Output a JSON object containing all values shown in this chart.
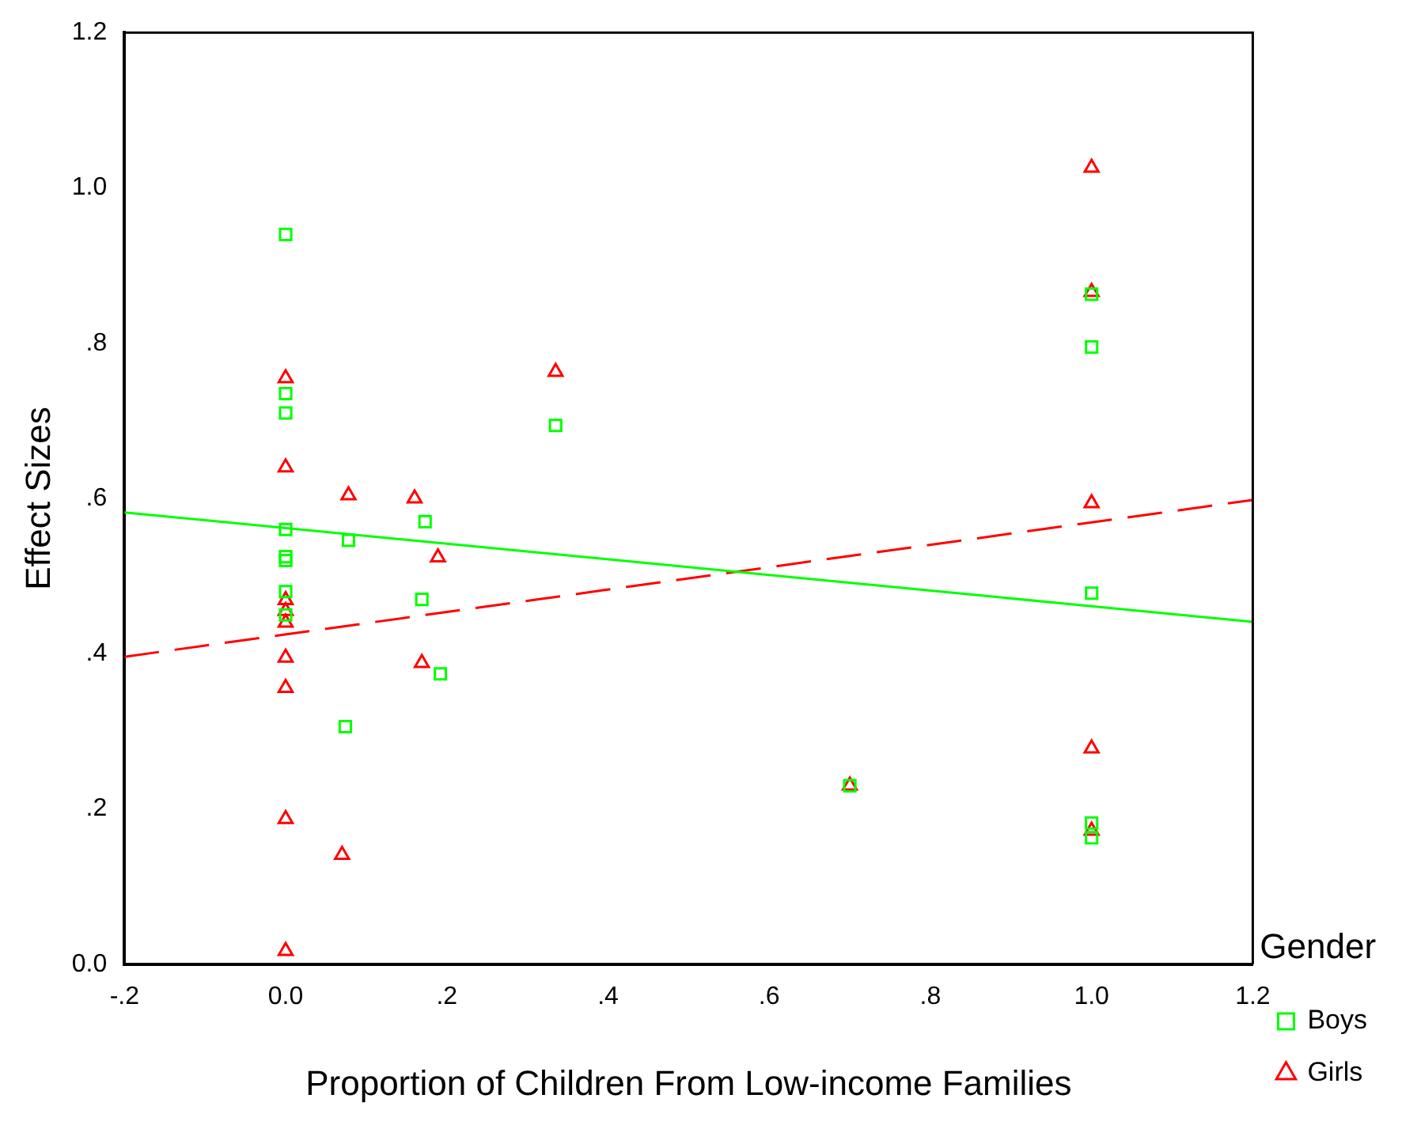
{
  "chart_data": {
    "type": "scatter",
    "xlabel": "Proportion of Children From Low-income Families",
    "ylabel": "Effect Sizes",
    "legend_title": "Gender",
    "legend": "right",
    "grid": false,
    "xlim": [
      -0.2,
      1.2
    ],
    "xticks": [
      {
        "value": -0.2,
        "label": "-.2"
      },
      {
        "value": 0,
        "label": "0.0"
      },
      {
        "value": 0.2,
        "label": ".2"
      },
      {
        "value": 0.4,
        "label": ".4"
      },
      {
        "value": 0.6,
        "label": ".6"
      },
      {
        "value": 0.8,
        "label": ".8"
      },
      {
        "value": 1,
        "label": "1.0"
      },
      {
        "value": 1.2,
        "label": "1.2"
      }
    ],
    "ylim": [
      0,
      1.2
    ],
    "yticks": [
      {
        "value": 0,
        "label": "0.0"
      },
      {
        "value": 0.2,
        "label": ".2"
      },
      {
        "value": 0.4,
        "label": ".4"
      },
      {
        "value": 0.6,
        "label": ".6"
      },
      {
        "value": 0.8,
        "label": ".8"
      },
      {
        "value": 1,
        "label": "1.0"
      },
      {
        "value": 1.2,
        "label": "1.2"
      }
    ],
    "series": [
      {
        "name": "Boys",
        "marker": "square",
        "color": "#00ff00",
        "x": [
          0,
          0,
          0,
          0,
          0,
          0,
          0,
          0,
          0.078,
          0.173,
          0.169,
          0.192,
          0.074,
          0.335,
          0.7,
          1,
          1,
          1,
          1,
          1
        ],
        "values": [
          0.94,
          0.735,
          0.71,
          0.56,
          0.525,
          0.52,
          0.48,
          0.45,
          0.546,
          0.57,
          0.47,
          0.374,
          0.306,
          0.694,
          0.23,
          0.863,
          0.795,
          0.478,
          0.182,
          0.163
        ]
      },
      {
        "name": "Girls",
        "marker": "triangle",
        "color": "#ff0000",
        "x": [
          0,
          0,
          0,
          0,
          0,
          0,
          0,
          0,
          0,
          0.078,
          0.16,
          0.189,
          0.169,
          0.07,
          0.335,
          0.7,
          1,
          1,
          1,
          1,
          1
        ],
        "values": [
          0.755,
          0.64,
          0.469,
          0.455,
          0.44,
          0.395,
          0.356,
          0.187,
          0.017,
          0.604,
          0.6,
          0.524,
          0.388,
          0.141,
          0.763,
          0.23,
          1.026,
          0.866,
          0.594,
          0.278,
          0.172
        ]
      },
      {
        "type": "line",
        "marker": "none",
        "line_style": "solid",
        "color": "#00ff00",
        "x": [
          -0.2,
          1.2
        ],
        "values": [
          0.582,
          0.441
        ]
      },
      {
        "type": "line",
        "marker": "none",
        "line_style": "dashed",
        "color": "#ff0000",
        "x": [
          -0.2,
          1.2
        ],
        "values": [
          0.396,
          0.598
        ]
      }
    ]
  }
}
